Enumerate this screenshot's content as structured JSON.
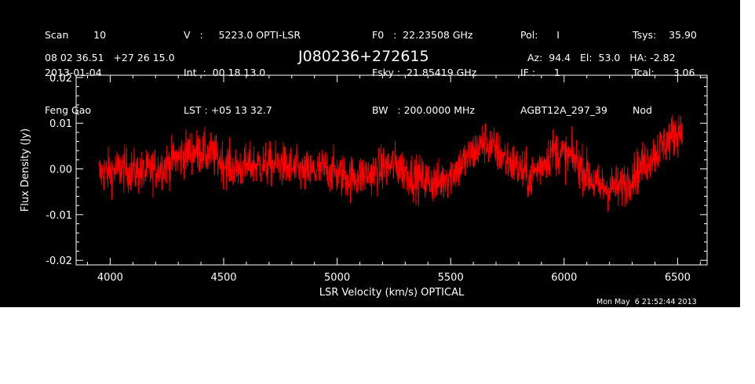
{
  "header": {
    "col1": [
      "Scan        10",
      "2013-01-04",
      "Feng Gao"
    ],
    "col2": [
      "V   :     5223.0 OPTI-LSR",
      "Int  :  00 18 13.0",
      "LST : +05 13 32.7"
    ],
    "col3": [
      "F0   :  22.23508 GHz",
      "Fsky :  21.85419 GHz",
      "BW   : 200.0000 MHz"
    ],
    "col4": [
      "Pol:      I",
      "IF :      1",
      "AGBT12A_297_39"
    ],
    "col5": [
      "Tsys:    35.90",
      "Tcal:      3.06",
      "Nod"
    ]
  },
  "coords_text": "08 02 36.51   +27 26 15.0",
  "source_title": "J080236+272615",
  "azel_text": "Az:  94.4   El:  53.0   HA: -2.82",
  "timestamp": "Mon May  6 21:52:44 2013",
  "colors": {
    "background": "#000000",
    "axes": "#ffffff",
    "trace": "#ff0000"
  },
  "chart_data": {
    "type": "line",
    "xlabel": "LSR Velocity (km/s) OPTICAL",
    "ylabel": "Flux Density (Jy)",
    "xlim": [
      3850,
      6630
    ],
    "ylim": [
      -0.021,
      0.0205
    ],
    "xticks": [
      4000,
      4500,
      5000,
      5500,
      6000,
      6500
    ],
    "xtick_labels": [
      "4000",
      "4500",
      "5000",
      "5500",
      "6000",
      "6500"
    ],
    "yticks": [
      -0.02,
      -0.01,
      0.0,
      0.01,
      0.02
    ],
    "ytick_labels": [
      "-0.02",
      "-0.01",
      "0.00",
      "0.01",
      "0.02"
    ],
    "series": [
      {
        "x_range": [
          3950,
          6520
        ],
        "envelope_x": [
          3950,
          4050,
          4150,
          4250,
          4350,
          4450,
          4550,
          4650,
          4750,
          4850,
          4950,
          5050,
          5150,
          5250,
          5350,
          5450,
          5550,
          5650,
          5750,
          5850,
          5950,
          6050,
          6150,
          6250,
          6350,
          6450,
          6520
        ],
        "baseline_y": [
          -0.001,
          0.0,
          -0.001,
          0.001,
          0.004,
          0.003,
          0.0,
          0.001,
          0.001,
          -0.001,
          0.0,
          -0.002,
          -0.001,
          0.001,
          -0.002,
          -0.003,
          0.001,
          0.006,
          0.002,
          -0.002,
          0.004,
          0.002,
          -0.004,
          -0.004,
          0.001,
          0.006,
          0.009
        ],
        "noise_amplitude": 0.004
      }
    ]
  }
}
